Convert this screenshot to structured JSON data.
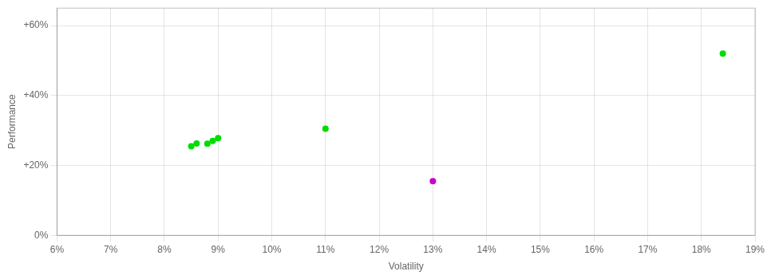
{
  "chart_data": {
    "type": "scatter",
    "xlabel": "Volatility",
    "ylabel": "Performance",
    "xlim": [
      0.06,
      0.19
    ],
    "ylim": [
      0.0,
      0.65
    ],
    "xticks": [
      {
        "value": 0.06,
        "label": "6%"
      },
      {
        "value": 0.07,
        "label": "7%"
      },
      {
        "value": 0.08,
        "label": "8%"
      },
      {
        "value": 0.09,
        "label": "9%"
      },
      {
        "value": 0.1,
        "label": "10%"
      },
      {
        "value": 0.11,
        "label": "11%"
      },
      {
        "value": 0.12,
        "label": "12%"
      },
      {
        "value": 0.13,
        "label": "13%"
      },
      {
        "value": 0.14,
        "label": "14%"
      },
      {
        "value": 0.15,
        "label": "15%"
      },
      {
        "value": 0.16,
        "label": "16%"
      },
      {
        "value": 0.17,
        "label": "17%"
      },
      {
        "value": 0.18,
        "label": "18%"
      },
      {
        "value": 0.19,
        "label": "19%"
      }
    ],
    "yticks": [
      {
        "value": 0.0,
        "label": "0%"
      },
      {
        "value": 0.2,
        "label": "+20%"
      },
      {
        "value": 0.4,
        "label": "+40%"
      },
      {
        "value": 0.6,
        "label": "+60%"
      }
    ],
    "grid": true,
    "series": [
      {
        "color": "#00dd00",
        "x": [
          0.085,
          0.086,
          0.088,
          0.089,
          0.09,
          0.11,
          0.184
        ],
        "values": [
          0.255,
          0.263,
          0.262,
          0.27,
          0.278,
          0.305,
          0.52
        ]
      },
      {
        "color": "#cc00cc",
        "x": [
          0.13
        ],
        "values": [
          0.155
        ]
      }
    ]
  }
}
